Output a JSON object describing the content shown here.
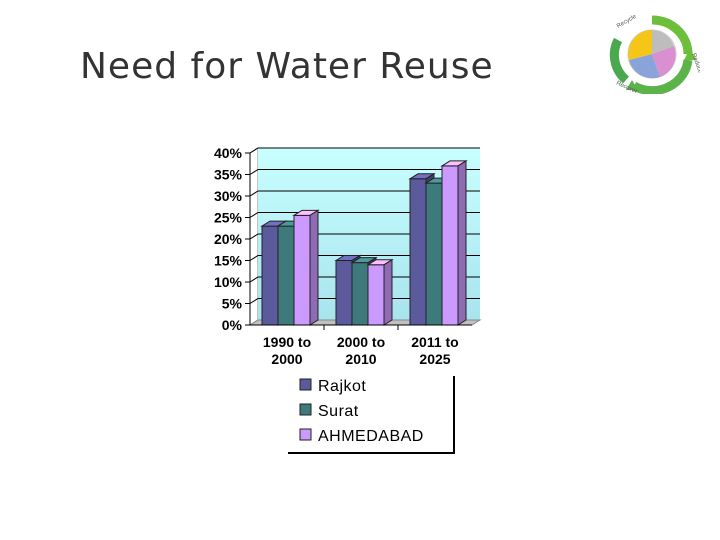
{
  "slide": {
    "title": "Need for Water Reuse"
  },
  "logo": {
    "icon": "recycle-cycle-logo",
    "ring_labels": [
      "Recycle",
      "Reduce",
      "Recover"
    ]
  },
  "colors": {
    "plot_top": "#c8ffff",
    "plot_bottom": "#a8e4ee",
    "rajkot": "#5a5a9c",
    "surat": "#3e7a7c",
    "ahmedabad": "#cc99ff"
  },
  "chart_data": {
    "type": "bar",
    "style": "3d-clustered",
    "categories": [
      "1990 to 2000",
      "2000 to 2010",
      "2011 to 2025"
    ],
    "category_lines": [
      [
        "1990 to",
        "2000"
      ],
      [
        "2000 to",
        "2010"
      ],
      [
        "2011 to",
        "2025"
      ]
    ],
    "series": [
      {
        "name": "Rajkot",
        "values": [
          23,
          15,
          34
        ]
      },
      {
        "name": "Surat",
        "values": [
          23,
          14.5,
          33
        ]
      },
      {
        "name": "AHMEDABAD",
        "values": [
          25.5,
          14,
          37
        ]
      }
    ],
    "ylim": [
      0,
      40
    ],
    "yticks": [
      "0%",
      "5%",
      "10%",
      "15%",
      "20%",
      "25%",
      "30%",
      "35%",
      "40%"
    ],
    "grid": true,
    "legend": "bottom"
  }
}
